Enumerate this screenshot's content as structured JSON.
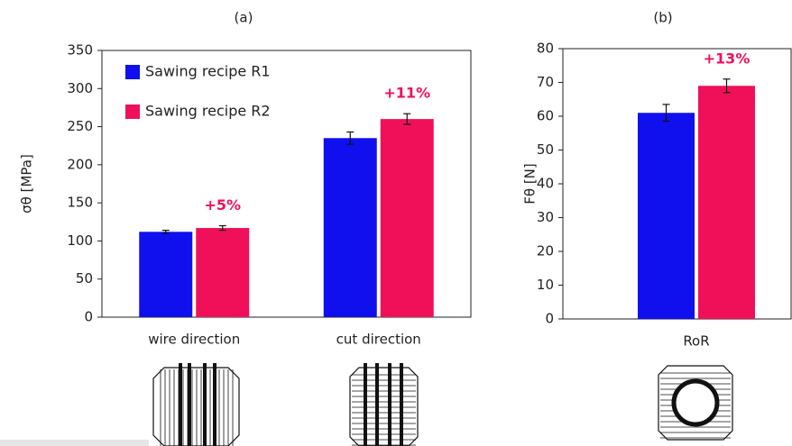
{
  "chart_data": [
    {
      "type": "bar",
      "title": "(a)",
      "y_label": "σθ [MPa]",
      "categories": [
        "wire direction",
        "cut direction"
      ],
      "series": [
        {
          "name": "Sawing recipe R1",
          "color": "#1010ee",
          "values": [
            112,
            235
          ],
          "errors": [
            2,
            8
          ]
        },
        {
          "name": "Sawing recipe R2",
          "color": "#f0105a",
          "values": [
            117,
            260
          ],
          "errors": [
            3,
            7
          ]
        }
      ],
      "annotations": [
        "+5%",
        "+11%"
      ],
      "ylim": [
        0,
        350
      ],
      "yticks": [
        0,
        50,
        100,
        150,
        200,
        250,
        300,
        350
      ],
      "legend": "upper left"
    },
    {
      "type": "bar",
      "title": "(b)",
      "y_label": "Fθ [N]",
      "categories": [
        "RoR"
      ],
      "series": [
        {
          "color": "#1010ee",
          "values": [
            61
          ],
          "errors": [
            2.5
          ]
        },
        {
          "color": "#f0105a",
          "values": [
            69
          ],
          "errors": [
            2
          ]
        }
      ],
      "annotations": [
        "+13%"
      ],
      "ylim": [
        0,
        80
      ],
      "yticks": [
        0,
        10,
        20,
        30,
        40,
        50,
        60,
        70,
        80
      ]
    }
  ]
}
